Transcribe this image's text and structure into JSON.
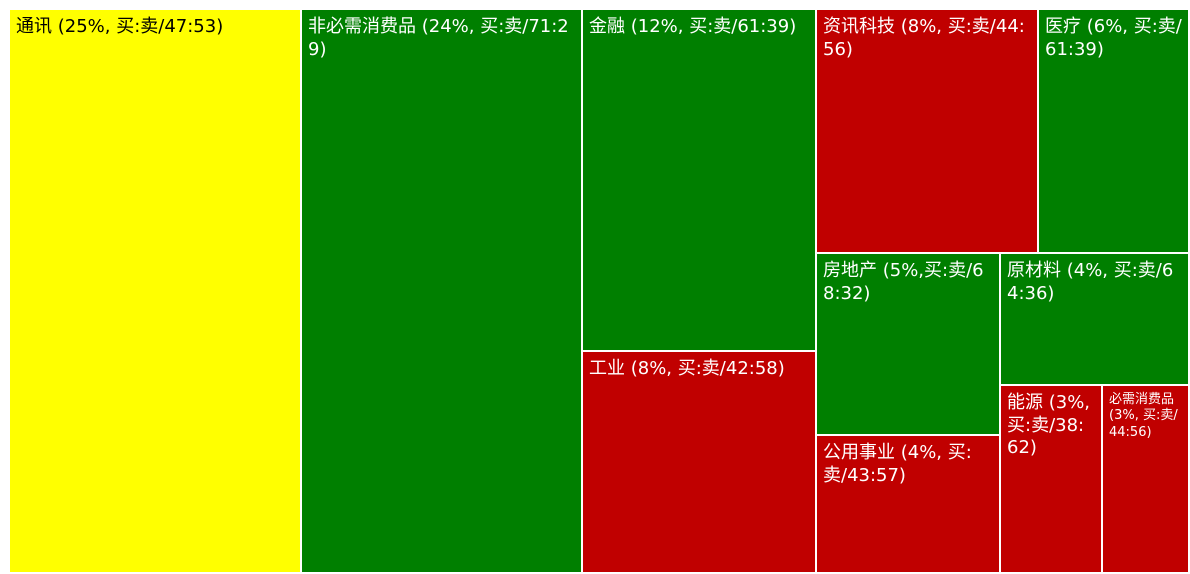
{
  "colors": {
    "up": "#007f00",
    "down": "#c00000",
    "neutral": "#ffff00",
    "border": "#ffffff"
  },
  "chart_data": {
    "type": "treemap",
    "value_unit": "%",
    "ratio_label": "买:卖",
    "items": [
      {
        "name": "通讯",
        "weight": 25,
        "buy": 47,
        "sell": 53,
        "status": "neutral",
        "label": "通讯 (25%, 买:卖/47:53)"
      },
      {
        "name": "非必需消费品",
        "weight": 24,
        "buy": 71,
        "sell": 29,
        "status": "up",
        "label": "非必需消费品 (24%, 买:卖/71:29)"
      },
      {
        "name": "金融",
        "weight": 12,
        "buy": 61,
        "sell": 39,
        "status": "up",
        "label": "金融 (12%, 买:卖/61:39)"
      },
      {
        "name": "工业",
        "weight": 8,
        "buy": 42,
        "sell": 58,
        "status": "down",
        "label": "工业 (8%, 买:卖/42:58)"
      },
      {
        "name": "资讯科技",
        "weight": 8,
        "buy": 44,
        "sell": 56,
        "status": "down",
        "label": "资讯科技 (8%, 买:卖/44:56)"
      },
      {
        "name": "医疗",
        "weight": 6,
        "buy": 61,
        "sell": 39,
        "status": "up",
        "label": "医疗 (6%, 买:卖/61:39)"
      },
      {
        "name": "房地产",
        "weight": 5,
        "buy": 68,
        "sell": 32,
        "status": "up",
        "label": "房地产 (5%,买:卖/68:32)"
      },
      {
        "name": "原材料",
        "weight": 4,
        "buy": 64,
        "sell": 36,
        "status": "up",
        "label": "原材料 (4%, 买:卖/64:36)"
      },
      {
        "name": "公用事业",
        "weight": 4,
        "buy": 43,
        "sell": 57,
        "status": "down",
        "label": "公用事业 (4%, 买:卖/43:57)"
      },
      {
        "name": "能源",
        "weight": 3,
        "buy": 38,
        "sell": 62,
        "status": "down",
        "label": "能源 (3%, 买:卖/38:62)"
      },
      {
        "name": "必需消费品",
        "weight": 3,
        "buy": 44,
        "sell": 56,
        "status": "down",
        "label": "必需消费品 (3%, 买:卖/44:56)"
      }
    ]
  }
}
